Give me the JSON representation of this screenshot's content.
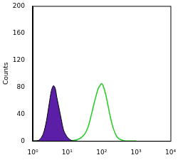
{
  "chart_data": {
    "type": "line",
    "log": "x",
    "grid": false,
    "y_label": "Counts",
    "xlim": [
      1,
      10000
    ],
    "xticks": [
      {
        "value": 1,
        "label": "10⁰"
      },
      {
        "value": 10,
        "label": "10¹"
      },
      {
        "value": 100,
        "label": "10²"
      },
      {
        "value": 1000,
        "label": "10³"
      },
      {
        "value": 10000,
        "label": "10⁴"
      }
    ],
    "ylim": [
      0,
      200
    ],
    "yticks": [
      0,
      40,
      80,
      120,
      160,
      200
    ],
    "series": [
      {
        "type": "area",
        "color": "#5a1fa6",
        "x": [
          1,
          1.5,
          2,
          2.5,
          3,
          3.5,
          4,
          4.5,
          5,
          6,
          7,
          8,
          10,
          12,
          15,
          20
        ],
        "values": [
          0,
          1,
          10,
          30,
          55,
          75,
          82,
          78,
          65,
          45,
          28,
          15,
          6,
          2,
          0,
          0
        ]
      },
      {
        "type": "line",
        "color": "#22cc22",
        "x": [
          1,
          10,
          20,
          30,
          40,
          50,
          60,
          70,
          80,
          90,
          100,
          110,
          130,
          150,
          180,
          220,
          280,
          350,
          500,
          1000
        ],
        "values": [
          0,
          0,
          2,
          8,
          20,
          38,
          55,
          68,
          78,
          82,
          85,
          82,
          70,
          55,
          35,
          18,
          6,
          2,
          0,
          0
        ]
      }
    ]
  }
}
